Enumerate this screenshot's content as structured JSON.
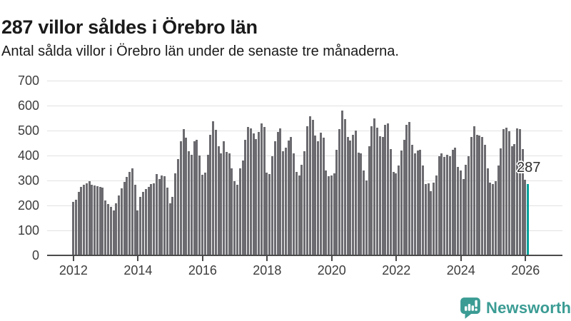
{
  "header": {
    "title": "287 villor såldes i Örebro län",
    "subtitle": "Antal sålda villor i Örebro län under de senaste tre månaderna."
  },
  "chart_data": {
    "type": "bar",
    "title": "287 villor såldes i Örebro län",
    "subtitle": "Antal sålda villor i Örebro län under de senaste tre månaderna.",
    "xlabel": "",
    "ylabel": "",
    "ylim": [
      0,
      700
    ],
    "y_ticks": [
      0,
      100,
      200,
      300,
      400,
      500,
      600,
      700
    ],
    "grid": "horizontal",
    "legend": "none",
    "x_unit": "month",
    "x_start": "2012-01",
    "x_end": "2026-02",
    "x_tick_labels": [
      "2012",
      "2014",
      "2016",
      "2018",
      "2020",
      "2022",
      "2024",
      "2026"
    ],
    "values": [
      215,
      222,
      253,
      274,
      282,
      290,
      297,
      283,
      280,
      277,
      274,
      272,
      219,
      205,
      193,
      181,
      210,
      240,
      268,
      295,
      315,
      335,
      350,
      283,
      181,
      234,
      253,
      266,
      274,
      287,
      290,
      326,
      306,
      319,
      316,
      272,
      210,
      234,
      330,
      386,
      456,
      506,
      471,
      417,
      403,
      456,
      463,
      400,
      323,
      332,
      403,
      483,
      538,
      504,
      437,
      408,
      456,
      413,
      408,
      350,
      297,
      282,
      350,
      379,
      464,
      514,
      509,
      490,
      466,
      495,
      529,
      515,
      332,
      326,
      398,
      456,
      495,
      509,
      417,
      432,
      461,
      475,
      408,
      335,
      321,
      364,
      417,
      516,
      558,
      543,
      480,
      456,
      492,
      471,
      340,
      316,
      320,
      330,
      422,
      506,
      580,
      545,
      475,
      461,
      483,
      501,
      411,
      408,
      340,
      300,
      437,
      516,
      548,
      512,
      477,
      475,
      522,
      528,
      427,
      335,
      330,
      360,
      420,
      463,
      522,
      533,
      442,
      408,
      419,
      422,
      359,
      287,
      289,
      256,
      292,
      321,
      398,
      408,
      393,
      403,
      398,
      422,
      432,
      355,
      340,
      306,
      364,
      398,
      475,
      516,
      483,
      480,
      475,
      442,
      350,
      292,
      287,
      297,
      359,
      429,
      506,
      512,
      497,
      437,
      446,
      509,
      505,
      427,
      303,
      287
    ],
    "highlight_last_value": 287,
    "annotation": "287"
  },
  "branding": {
    "name": "Newsworthy",
    "icon": "newsworthy-speech-bubble-chart-icon"
  },
  "colors": {
    "bar": "#6b6b70",
    "highlight": "#00a29a",
    "grid": "#e2e2e2",
    "axis": "#4b4b4b",
    "text": "#1a1a1a",
    "tick_label": "#3d3d3d",
    "brand": "#3b9c94"
  }
}
